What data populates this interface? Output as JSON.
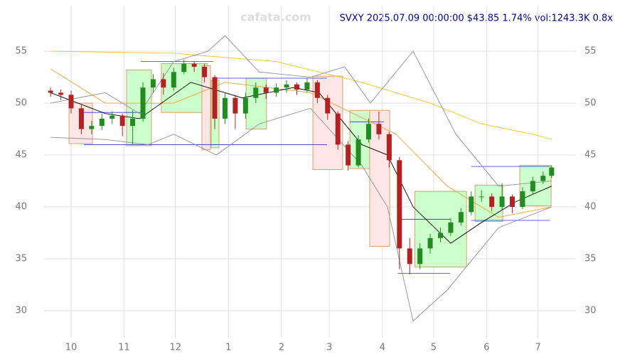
{
  "chart_data": {
    "type": "candlestick",
    "title": "SVXY 2025.07.09 00:00:00 $43.85 1.74% vol:1243.3K 0.8x",
    "watermark": "cafata.com",
    "x": [
      -12,
      -6,
      0,
      6,
      12,
      18,
      24,
      30,
      36,
      42,
      48,
      54,
      60,
      66,
      72,
      78,
      84,
      90,
      96,
      102,
      108,
      114,
      120,
      126,
      132,
      138,
      144,
      150,
      156,
      162,
      168,
      174,
      180,
      186,
      192,
      198,
      204,
      210,
      216,
      222,
      228,
      234,
      240,
      246,
      252,
      258,
      264,
      270,
      276,
      281
    ],
    "open": [
      51.2,
      51.0,
      50.8,
      49.5,
      47.5,
      47.8,
      48.5,
      48.8,
      47.8,
      48.5,
      51.5,
      52.3,
      51.5,
      53.0,
      53.8,
      53.5,
      52.5,
      48.5,
      50.5,
      49.0,
      50.5,
      51.5,
      51.0,
      51.5,
      51.8,
      51.3,
      52.0,
      50.5,
      49.0,
      46.0,
      44.0,
      46.5,
      48.0,
      47.0,
      44.5,
      36.0,
      34.5,
      36.0,
      37.0,
      37.5,
      38.5,
      39.5,
      41.0,
      41.0,
      40.0,
      41.0,
      40.0,
      41.5,
      42.5,
      43.0
    ],
    "high": [
      51.5,
      51.3,
      51.2,
      49.8,
      48.3,
      49.0,
      49.2,
      49.0,
      49.3,
      52.0,
      52.8,
      52.9,
      53.4,
      54.2,
      54.0,
      53.8,
      52.7,
      51.0,
      50.8,
      51.0,
      52.0,
      51.8,
      51.9,
      52.2,
      52.0,
      52.4,
      52.2,
      50.8,
      49.2,
      46.3,
      46.9,
      48.5,
      49.2,
      47.2,
      44.8,
      37.0,
      36.5,
      37.4,
      38.0,
      38.9,
      39.9,
      41.5,
      41.6,
      41.3,
      42.3,
      41.2,
      41.9,
      42.9,
      43.4,
      44.0
    ],
    "low": [
      50.6,
      50.3,
      49.0,
      47.0,
      47.0,
      47.4,
      48.0,
      46.8,
      46.0,
      48.2,
      51.0,
      50.8,
      51.2,
      52.8,
      53.0,
      52.0,
      47.5,
      48.0,
      47.5,
      48.5,
      50.0,
      50.4,
      50.6,
      51.0,
      50.8,
      51.0,
      50.0,
      48.4,
      45.5,
      43.5,
      43.8,
      46.2,
      46.5,
      43.8,
      34.0,
      33.5,
      34.0,
      35.5,
      36.6,
      37.2,
      38.2,
      39.2,
      40.5,
      39.6,
      39.7,
      39.4,
      39.8,
      41.2,
      42.2,
      42.8
    ],
    "close": [
      51.0,
      50.8,
      49.5,
      47.5,
      47.8,
      48.5,
      48.8,
      47.8,
      48.5,
      51.5,
      52.3,
      51.5,
      53.0,
      53.8,
      53.5,
      52.5,
      48.5,
      50.5,
      49.0,
      50.5,
      51.5,
      51.0,
      51.5,
      51.8,
      51.3,
      52.0,
      50.5,
      49.0,
      46.0,
      44.0,
      46.5,
      48.0,
      47.0,
      44.5,
      36.0,
      34.5,
      36.0,
      37.0,
      37.5,
      38.5,
      39.5,
      41.0,
      41.0,
      40.0,
      41.0,
      40.0,
      41.5,
      42.5,
      43.0,
      43.8
    ],
    "up_color": "#228b22",
    "down_color": "#b22222",
    "lines": [
      {
        "color": "#f5c518",
        "x": [
          -12,
          60,
          120,
          170,
          210,
          240,
          270,
          281
        ],
        "values": [
          55,
          54.8,
          54,
          52,
          50,
          48,
          47,
          46.5
        ]
      },
      {
        "color": "#f0a030",
        "x": [
          -12,
          20,
          60,
          90,
          140,
          190,
          220,
          250,
          281
        ],
        "values": [
          53.3,
          50,
          50,
          52,
          51,
          47,
          42,
          39,
          40
        ]
      },
      {
        "color": "#000000",
        "x": [
          -12,
          20,
          40,
          70,
          100,
          130,
          145,
          170,
          185,
          200,
          222,
          240,
          260,
          281
        ],
        "values": [
          51,
          49,
          48.5,
          52,
          50.5,
          51.5,
          51,
          46,
          45,
          40,
          36.5,
          38.5,
          40.5,
          42
        ]
      },
      {
        "color": "#909090",
        "x": [
          -12,
          20,
          40,
          60,
          80,
          90,
          110,
          140,
          160,
          175,
          200,
          225,
          250,
          281
        ],
        "values": [
          50,
          51,
          49,
          54,
          55,
          56.5,
          53,
          52.5,
          53.5,
          50,
          55,
          47,
          42,
          42.5
        ]
      },
      {
        "color": "#909090",
        "x": [
          -12,
          20,
          45,
          60,
          85,
          110,
          140,
          170,
          185,
          200,
          220,
          250,
          281
        ],
        "values": [
          46.7,
          46.5,
          46,
          47,
          45,
          48,
          49.5,
          44,
          40,
          29,
          32,
          38,
          40
        ]
      }
    ],
    "boxes": [
      {
        "x": [
          -1.2,
          12.5
        ],
        "y": [
          46.1,
          50
        ],
        "color": "#ffe6e6"
      },
      {
        "x": [
          32.4,
          47
        ],
        "y": [
          45.9,
          53.2
        ],
        "color": "#ccffcc"
      },
      {
        "x": [
          52.8,
          79.8
        ],
        "y": [
          49.1,
          53.8
        ],
        "color": "#ccffcc"
      },
      {
        "x": [
          76.5,
          81.5
        ],
        "y": [
          45.5,
          53.6
        ],
        "color": "#ffe6e6"
      },
      {
        "x": [
          81.9,
          86.5
        ],
        "y": [
          45.7,
          52.2
        ],
        "color": "#ccffcc"
      },
      {
        "x": [
          102.3,
          114.3
        ],
        "y": [
          47.5,
          52.4
        ],
        "color": "#ccffcc"
      },
      {
        "x": [
          141.4,
          158.8
        ],
        "y": [
          43.6,
          52.6
        ],
        "color": "#ffe6e6"
      },
      {
        "x": [
          163,
          174.6
        ],
        "y": [
          43.7,
          49.3
        ],
        "color": "#ccffcc"
      },
      {
        "x": [
          174.6,
          186.3
        ],
        "y": [
          36.2,
          49.3
        ],
        "color": "#ffe6e6"
      },
      {
        "x": [
          201,
          231.2
        ],
        "y": [
          34.2,
          41.5
        ],
        "color": "#ccffcc"
      },
      {
        "x": [
          236.2,
          252.4
        ],
        "y": [
          38.6,
          42.1
        ],
        "color": "#ccffcc"
      },
      {
        "x": [
          262.4,
          280.7
        ],
        "y": [
          40.1,
          44
        ],
        "color": "#ccffcc"
      }
    ],
    "levels": [
      {
        "x": [
          7.5,
          149.7
        ],
        "value": 46,
        "color": "#3333cc"
      },
      {
        "x": [
          7.5,
          41.6
        ],
        "value": 49.1,
        "color": "#3333cc"
      },
      {
        "x": [
          40.7,
          83
        ],
        "value": 54,
        "color": "#3333cc"
      },
      {
        "x": [
          83,
          149.7
        ],
        "value": 52.4,
        "color": "#3333cc"
      },
      {
        "x": [
          163,
          183
        ],
        "value": 48.2,
        "color": "#3333cc"
      },
      {
        "x": [
          191,
          221.6
        ],
        "value": 38.8,
        "color": "#3333cc"
      },
      {
        "x": [
          191,
          221.6
        ],
        "value": 33.6,
        "color": "#3333cc"
      },
      {
        "x": [
          234,
          280
        ],
        "value": 43.9,
        "color": "#3333cc"
      },
      {
        "x": [
          234,
          280
        ],
        "value": 38.7,
        "color": "#3333cc"
      }
    ],
    "xlim": [
      -15.8,
      295.2
    ],
    "ylim": [
      27.4,
      59.4
    ],
    "xticks": [
      {
        "value": 0,
        "label": "10"
      },
      {
        "value": 31,
        "label": "11"
      },
      {
        "value": 61,
        "label": "12"
      },
      {
        "value": 92,
        "label": "1"
      },
      {
        "value": 123,
        "label": "2"
      },
      {
        "value": 151,
        "label": "3"
      },
      {
        "value": 182,
        "label": "4"
      },
      {
        "value": 212,
        "label": "5"
      },
      {
        "value": 243,
        "label": "6"
      },
      {
        "value": 273,
        "label": "7"
      }
    ],
    "yticks": [
      30,
      35,
      40,
      45,
      50,
      55
    ],
    "grid": true
  }
}
